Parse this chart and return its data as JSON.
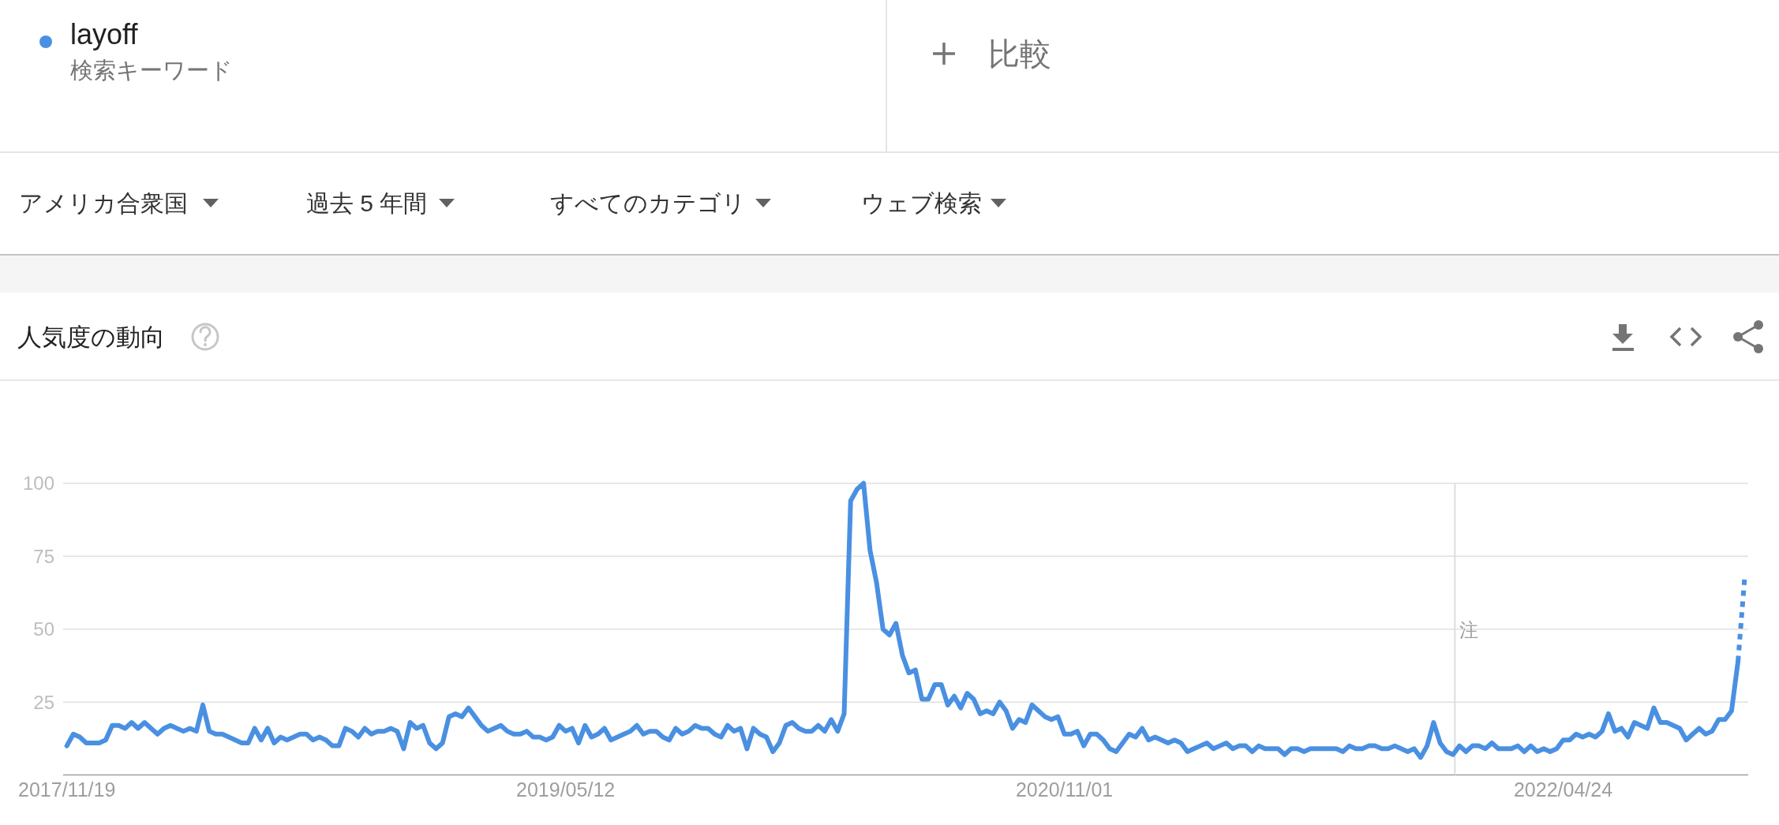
{
  "chart_data": {
    "type": "line",
    "title": "人気度の動向",
    "annotations": [
      "検索キーワード",
      "比較",
      "アメリカ合衆国",
      "過去 5 年間",
      "すべてのカテゴリ",
      "ウェブ検索"
    ],
    "legend": "top left",
    "grid": "y",
    "xlim": [
      "2017-11-15",
      "2022-11-10"
    ],
    "xticks": [
      {
        "value": "2017-11-19",
        "label": "2017/11/19"
      },
      {
        "value": "2019-05-12",
        "label": "2019/05/12"
      },
      {
        "value": "2020-11-01",
        "label": "2020/11/01"
      },
      {
        "value": "2022-04-24",
        "label": "2022/04/24"
      }
    ],
    "ylim": [
      0,
      100
    ],
    "yticks": [
      25,
      50,
      75,
      100
    ],
    "ref_lines": [
      {
        "axis": "x",
        "value": "2021-12-28",
        "label": "注",
        "color": "#dddddd"
      }
    ],
    "series": [
      {
        "name": "layoff",
        "color": "#4a90e2",
        "x": [
          "2017-11-19",
          "2017-11-26",
          "2017-12-03",
          "2017-12-10",
          "2017-12-17",
          "2017-12-24",
          "2017-12-31",
          "2018-01-07",
          "2018-01-14",
          "2018-01-21",
          "2018-01-28",
          "2018-02-04",
          "2018-02-11",
          "2018-02-18",
          "2018-02-25",
          "2018-03-04",
          "2018-03-11",
          "2018-03-18",
          "2018-03-25",
          "2018-04-01",
          "2018-04-08",
          "2018-04-15",
          "2018-04-22",
          "2018-04-29",
          "2018-05-06",
          "2018-05-13",
          "2018-05-20",
          "2018-05-27",
          "2018-06-03",
          "2018-06-10",
          "2018-06-17",
          "2018-06-24",
          "2018-07-01",
          "2018-07-08",
          "2018-07-15",
          "2018-07-22",
          "2018-07-29",
          "2018-08-05",
          "2018-08-12",
          "2018-08-19",
          "2018-08-26",
          "2018-09-02",
          "2018-09-09",
          "2018-09-16",
          "2018-09-23",
          "2018-09-30",
          "2018-10-07",
          "2018-10-14",
          "2018-10-21",
          "2018-10-28",
          "2018-11-04",
          "2018-11-11",
          "2018-11-18",
          "2018-11-25",
          "2018-12-02",
          "2018-12-09",
          "2018-12-16",
          "2018-12-23",
          "2018-12-30",
          "2019-01-06",
          "2019-01-13",
          "2019-01-20",
          "2019-01-27",
          "2019-02-03",
          "2019-02-10",
          "2019-02-17",
          "2019-02-24",
          "2019-03-03",
          "2019-03-10",
          "2019-03-17",
          "2019-03-24",
          "2019-03-31",
          "2019-04-07",
          "2019-04-14",
          "2019-04-21",
          "2019-04-28",
          "2019-05-05",
          "2019-05-12",
          "2019-05-19",
          "2019-05-26",
          "2019-06-02",
          "2019-06-09",
          "2019-06-16",
          "2019-06-23",
          "2019-06-30",
          "2019-07-07",
          "2019-07-14",
          "2019-07-21",
          "2019-07-28",
          "2019-08-04",
          "2019-08-11",
          "2019-08-18",
          "2019-08-25",
          "2019-09-01",
          "2019-09-08",
          "2019-09-15",
          "2019-09-22",
          "2019-09-29",
          "2019-10-06",
          "2019-10-13",
          "2019-10-20",
          "2019-10-27",
          "2019-11-03",
          "2019-11-10",
          "2019-11-17",
          "2019-11-24",
          "2019-12-01",
          "2019-12-08",
          "2019-12-15",
          "2019-12-22",
          "2019-12-29",
          "2020-01-05",
          "2020-01-12",
          "2020-01-19",
          "2020-01-26",
          "2020-02-02",
          "2020-02-09",
          "2020-02-16",
          "2020-02-23",
          "2020-03-01",
          "2020-03-08",
          "2020-03-15",
          "2020-03-22",
          "2020-03-29",
          "2020-04-05",
          "2020-04-12",
          "2020-04-19",
          "2020-04-26",
          "2020-05-03",
          "2020-05-10",
          "2020-05-17",
          "2020-05-24",
          "2020-05-31",
          "2020-06-07",
          "2020-06-14",
          "2020-06-21",
          "2020-06-28",
          "2020-07-05",
          "2020-07-12",
          "2020-07-19",
          "2020-07-26",
          "2020-08-02",
          "2020-08-09",
          "2020-08-16",
          "2020-08-23",
          "2020-08-30",
          "2020-09-06",
          "2020-09-13",
          "2020-09-20",
          "2020-09-27",
          "2020-10-04",
          "2020-10-11",
          "2020-10-18",
          "2020-10-25",
          "2020-11-01",
          "2020-11-08",
          "2020-11-15",
          "2020-11-22",
          "2020-11-29",
          "2020-12-06",
          "2020-12-13",
          "2020-12-20",
          "2020-12-27",
          "2021-01-03",
          "2021-01-10",
          "2021-01-17",
          "2021-01-24",
          "2021-01-31",
          "2021-02-07",
          "2021-02-14",
          "2021-02-21",
          "2021-02-28",
          "2021-03-07",
          "2021-03-14",
          "2021-03-21",
          "2021-03-28",
          "2021-04-04",
          "2021-04-11",
          "2021-04-18",
          "2021-04-25",
          "2021-05-02",
          "2021-05-09",
          "2021-05-16",
          "2021-05-23",
          "2021-05-30",
          "2021-06-06",
          "2021-06-13",
          "2021-06-20",
          "2021-06-27",
          "2021-07-04",
          "2021-07-11",
          "2021-07-18",
          "2021-07-25",
          "2021-08-01",
          "2021-08-08",
          "2021-08-15",
          "2021-08-22",
          "2021-08-29",
          "2021-09-05",
          "2021-09-12",
          "2021-09-19",
          "2021-09-26",
          "2021-10-03",
          "2021-10-10",
          "2021-10-17",
          "2021-10-24",
          "2021-10-31",
          "2021-11-07",
          "2021-11-14",
          "2021-11-21",
          "2021-11-28",
          "2021-12-05",
          "2021-12-12",
          "2021-12-19",
          "2021-12-26",
          "2022-01-02",
          "2022-01-09",
          "2022-01-16",
          "2022-01-23",
          "2022-01-30",
          "2022-02-06",
          "2022-02-13",
          "2022-02-20",
          "2022-02-27",
          "2022-03-06",
          "2022-03-13",
          "2022-03-20",
          "2022-03-27",
          "2022-04-03",
          "2022-04-10",
          "2022-04-17",
          "2022-04-24",
          "2022-05-01",
          "2022-05-08",
          "2022-05-15",
          "2022-05-22",
          "2022-05-29",
          "2022-06-05",
          "2022-06-12",
          "2022-06-19",
          "2022-06-26",
          "2022-07-03",
          "2022-07-10",
          "2022-07-17",
          "2022-07-24",
          "2022-07-31",
          "2022-08-07",
          "2022-08-14",
          "2022-08-21",
          "2022-08-28",
          "2022-09-04",
          "2022-09-11",
          "2022-09-18",
          "2022-09-25",
          "2022-10-02",
          "2022-10-09",
          "2022-10-16",
          "2022-10-23",
          "2022-10-30"
        ],
        "values": [
          10,
          14,
          13,
          11,
          11,
          11,
          12,
          17,
          17,
          16,
          18,
          16,
          18,
          16,
          14,
          16,
          17,
          16,
          15,
          16,
          15,
          24,
          15,
          14,
          14,
          13,
          12,
          11,
          11,
          16,
          12,
          16,
          11,
          13,
          12,
          13,
          14,
          14,
          12,
          13,
          12,
          10,
          10,
          16,
          15,
          13,
          16,
          14,
          15,
          15,
          16,
          15,
          9,
          18,
          16,
          17,
          11,
          9,
          11,
          20,
          21,
          20,
          23,
          20,
          17,
          15,
          16,
          17,
          15,
          14,
          14,
          15,
          13,
          13,
          12,
          13,
          17,
          15,
          16,
          11,
          17,
          13,
          14,
          16,
          12,
          13,
          14,
          15,
          17,
          14,
          15,
          15,
          13,
          12,
          16,
          14,
          15,
          17,
          16,
          16,
          14,
          13,
          17,
          15,
          16,
          9,
          16,
          14,
          13,
          8,
          11,
          17,
          18,
          16,
          15,
          15,
          17,
          15,
          19,
          15,
          21,
          94,
          98,
          100,
          77,
          66,
          50,
          48,
          52,
          41,
          35,
          36,
          26,
          26,
          31,
          31,
          24,
          27,
          23,
          28,
          26,
          21,
          22,
          21,
          25,
          22,
          16,
          19,
          18,
          24,
          22,
          20,
          19,
          20,
          14,
          14,
          15,
          10,
          14,
          14,
          12,
          9,
          8,
          11,
          14,
          13,
          16,
          12,
          13,
          12,
          11,
          12,
          11,
          8,
          9,
          10,
          11,
          9,
          10,
          11,
          9,
          10,
          10,
          8,
          10,
          9,
          9,
          9,
          7,
          9,
          9,
          8,
          9,
          9,
          9,
          9,
          9,
          8,
          10,
          9,
          9,
          10,
          10,
          9,
          9,
          10,
          9,
          8,
          9,
          6,
          10,
          18,
          11,
          8,
          7,
          10,
          8,
          10,
          10,
          9,
          11,
          9,
          9,
          9,
          10,
          8,
          10,
          8,
          9,
          8,
          9,
          12,
          12,
          14,
          13,
          14,
          13,
          15,
          21,
          15,
          16,
          13,
          18,
          17,
          16,
          23,
          18,
          18,
          17,
          16,
          12,
          14,
          16,
          14,
          15,
          19,
          19,
          22,
          39
        ]
      },
      {
        "color": "#4a90e2",
        "line_style": "dotted",
        "x": [
          "2022-10-30",
          "2022-11-06"
        ],
        "values": [
          39,
          67
        ]
      }
    ]
  }
}
